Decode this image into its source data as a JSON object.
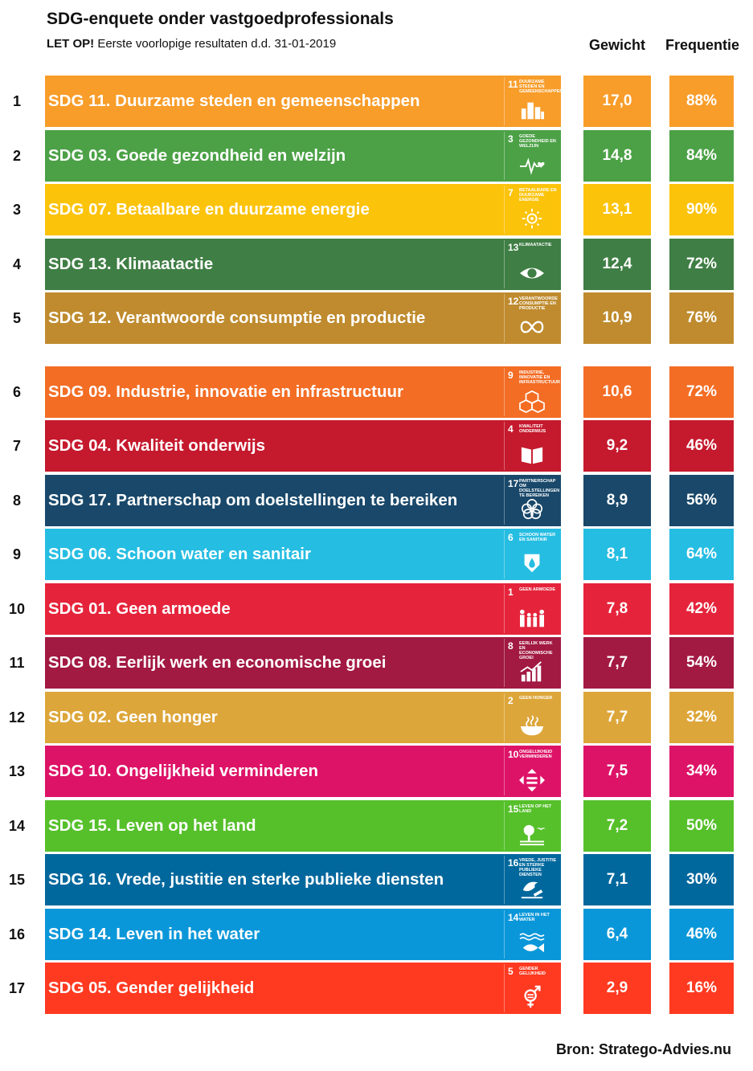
{
  "title": "SDG-enquete onder vastgoedprofessionals",
  "subtitle_bold": "LET OP!",
  "subtitle_rest": " Eerste voorlopige resultaten d.d. 31-01-2019",
  "column_headers": {
    "gewicht": "Gewicht",
    "frequentie": "Frequentie"
  },
  "source": "Bron: Stratego-Advies.nu",
  "chart_data": {
    "type": "table",
    "title": "SDG-enquete onder vastgoedprofessionals",
    "columns": [
      "Gewicht",
      "Frequentie"
    ],
    "rows": [
      {
        "rank": "1",
        "label": "SDG 11. Duurzame steden en gemeenschappen",
        "gewicht": "17,0",
        "frequentie": "88%",
        "color": "#F89D2A",
        "icon_num": "11",
        "icon_caption": "Duurzame steden en gemeenschappen",
        "icon": "city-icon"
      },
      {
        "rank": "2",
        "label": "SDG 03. Goede gezondheid en welzijn",
        "gewicht": "14,8",
        "frequentie": "84%",
        "color": "#4CA146",
        "icon_num": "3",
        "icon_caption": "Goede gezondheid en welzijn",
        "icon": "heartbeat-icon"
      },
      {
        "rank": "3",
        "label": "SDG 07. Betaalbare en duurzame energie",
        "gewicht": "13,1",
        "frequentie": "90%",
        "color": "#FCC30B",
        "icon_num": "7",
        "icon_caption": "Betaalbare en duurzame energie",
        "icon": "sun-icon"
      },
      {
        "rank": "4",
        "label": "SDG 13. Klimaatactie",
        "gewicht": "12,4",
        "frequentie": "72%",
        "color": "#3F7E44",
        "icon_num": "13",
        "icon_caption": "Klimaatactie",
        "icon": "eye-globe-icon"
      },
      {
        "rank": "5",
        "label": "SDG 12. Verantwoorde consumptie en productie",
        "gewicht": "10,9",
        "frequentie": "76%",
        "color": "#BF8B2E",
        "icon_num": "12",
        "icon_caption": "Verantwoorde consumptie en productie",
        "icon": "infinity-icon"
      },
      {
        "rank": "6",
        "label": "SDG 09. Industrie, innovatie en infrastructuur",
        "gewicht": "10,6",
        "frequentie": "72%",
        "color": "#F36D25",
        "icon_num": "9",
        "icon_caption": "Industrie, innovatie en infrastructuur",
        "icon": "cubes-icon"
      },
      {
        "rank": "7",
        "label": "SDG 04. Kwaliteit onderwijs",
        "gewicht": "9,2",
        "frequentie": "46%",
        "color": "#C5192D",
        "icon_num": "4",
        "icon_caption": "Kwaliteit onderwijs",
        "icon": "book-icon"
      },
      {
        "rank": "8",
        "label": "SDG 17. Partnerschap om doelstellingen te bereiken",
        "gewicht": "8,9",
        "frequentie": "56%",
        "color": "#19486A",
        "icon_num": "17",
        "icon_caption": "Partnerschap om doelstellingen te bereiken",
        "icon": "rings-icon"
      },
      {
        "rank": "9",
        "label": "SDG 06. Schoon water en sanitair",
        "gewicht": "8,1",
        "frequentie": "64%",
        "color": "#26BDE2",
        "icon_num": "6",
        "icon_caption": "Schoon water en sanitair",
        "icon": "water-drop-icon"
      },
      {
        "rank": "10",
        "label": "SDG 01. Geen armoede",
        "gewicht": "7,8",
        "frequentie": "42%",
        "color": "#E5243B",
        "icon_num": "1",
        "icon_caption": "Geen armoede",
        "icon": "family-icon"
      },
      {
        "rank": "11",
        "label": "SDG 08. Eerlijk werk en economische groei",
        "gewicht": "7,7",
        "frequentie": "54%",
        "color": "#A21942",
        "icon_num": "8",
        "icon_caption": "Eerlijk werk en economische groei",
        "icon": "growth-chart-icon"
      },
      {
        "rank": "12",
        "label": "SDG 02. Geen honger",
        "gewicht": "7,7",
        "frequentie": "32%",
        "color": "#DDA63A",
        "icon_num": "2",
        "icon_caption": "Geen honger",
        "icon": "bowl-icon"
      },
      {
        "rank": "13",
        "label": "SDG 10. Ongelijkheid verminderen",
        "gewicht": "7,5",
        "frequentie": "34%",
        "color": "#DD1367",
        "icon_num": "10",
        "icon_caption": "Ongelijkheid verminderen",
        "icon": "equality-arrows-icon"
      },
      {
        "rank": "14",
        "label": "SDG 15. Leven op het land",
        "gewicht": "7,2",
        "frequentie": "50%",
        "color": "#56C02B",
        "icon_num": "15",
        "icon_caption": "Leven op het land",
        "icon": "tree-bird-icon"
      },
      {
        "rank": "15",
        "label": "SDG 16. Vrede, justitie en sterke publieke diensten",
        "gewicht": "7,1",
        "frequentie": "30%",
        "color": "#00689D",
        "icon_num": "16",
        "icon_caption": "Vrede, justitie en sterke publieke diensten",
        "icon": "dove-gavel-icon"
      },
      {
        "rank": "16",
        "label": "SDG 14. Leven in het water",
        "gewicht": "6,4",
        "frequentie": "46%",
        "color": "#0A97D9",
        "icon_num": "14",
        "icon_caption": "Leven in het water",
        "icon": "fish-icon"
      },
      {
        "rank": "17",
        "label": "SDG 05. Gender gelijkheid",
        "gewicht": "2,9",
        "frequentie": "16%",
        "color": "#FF3A21",
        "icon_num": "5",
        "icon_caption": "Gender gelijkheid",
        "icon": "gender-icon"
      }
    ]
  }
}
